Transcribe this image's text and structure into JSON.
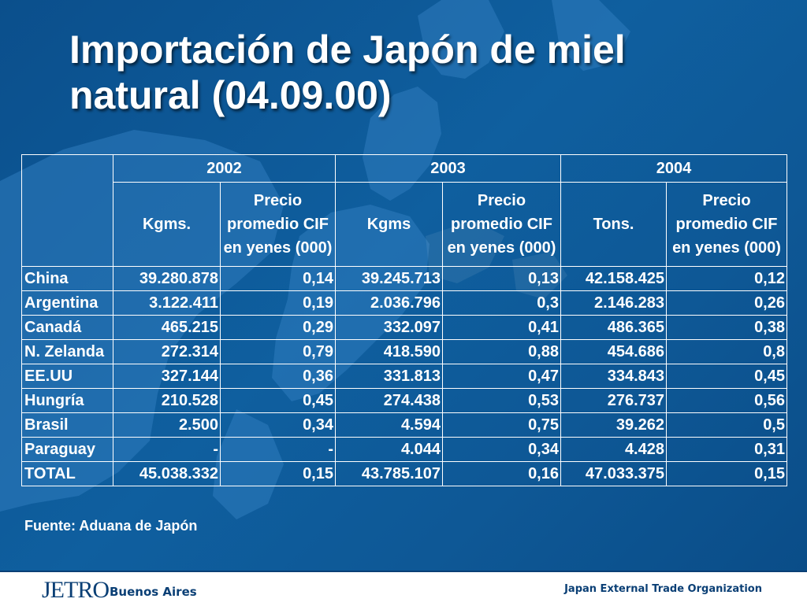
{
  "slide": {
    "title_line1": "Importación de Japón de miel",
    "title_line2": "natural (04.09.00)"
  },
  "table": {
    "years": [
      "2002",
      "2003",
      "2004"
    ],
    "subheaders": [
      "Kgms.",
      "Precio promedio CIF en yenes (000)",
      "Kgms",
      "Precio promedio CIF en yenes (000)",
      "Tons.",
      "Precio promedio CIF en yenes (000)"
    ],
    "rows": [
      {
        "country": "China",
        "v": [
          "39.280.878",
          "0,14",
          "39.245.713",
          "0,13",
          "42.158.425",
          "0,12"
        ]
      },
      {
        "country": "Argentina",
        "v": [
          "3.122.411",
          "0,19",
          "2.036.796",
          "0,3",
          "2.146.283",
          "0,26"
        ]
      },
      {
        "country": "Canadá",
        "v": [
          "465.215",
          "0,29",
          "332.097",
          "0,41",
          "486.365",
          "0,38"
        ]
      },
      {
        "country": "N. Zelanda",
        "v": [
          "272.314",
          "0,79",
          "418.590",
          "0,88",
          "454.686",
          "0,8"
        ]
      },
      {
        "country": "EE.UU",
        "v": [
          "327.144",
          "0,36",
          "331.813",
          "0,47",
          "334.843",
          "0,45"
        ]
      },
      {
        "country": "Hungría",
        "v": [
          "210.528",
          "0,45",
          "274.438",
          "0,53",
          "276.737",
          "0,56"
        ]
      },
      {
        "country": "Brasil",
        "v": [
          "2.500",
          "0,34",
          "4.594",
          "0,75",
          "39.262",
          "0,5"
        ]
      },
      {
        "country": "Paraguay",
        "v": [
          "-",
          "-",
          "4.044",
          "0,34",
          "4.428",
          "0,31"
        ]
      },
      {
        "country": "TOTAL",
        "v": [
          "45.038.332",
          "0,15",
          "43.785.107",
          "0,16",
          "47.033.375",
          "0,15"
        ]
      }
    ]
  },
  "source": "Fuente:  Aduana de Japón",
  "footer": {
    "logo": "JETRO",
    "logo_sub": "Buenos Aires",
    "org": "Japan External Trade Organization"
  },
  "colors": {
    "background": "#0d5a99",
    "map_land": "#2f7bbd",
    "text": "#ffffff",
    "footer_text": "#0a3f75"
  }
}
